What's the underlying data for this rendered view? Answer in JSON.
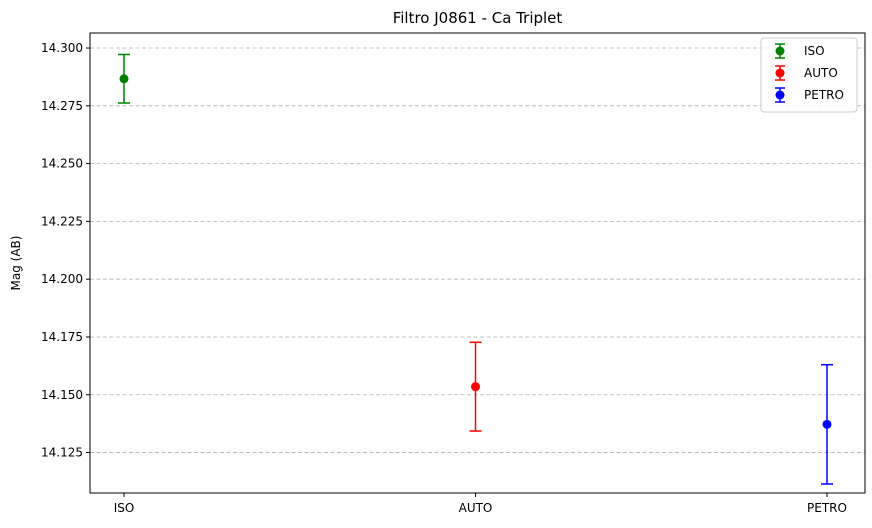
{
  "chart_data": {
    "type": "scatter",
    "title": "Filtro J0861 - Ca Triplet",
    "xlabel": "",
    "ylabel": "Mag (AB)",
    "categories": [
      "ISO",
      "AUTO",
      "PETRO"
    ],
    "ylim": [
      14.1075,
      14.3065
    ],
    "yticks": [
      "14.125",
      "14.150",
      "14.175",
      "14.200",
      "14.225",
      "14.250",
      "14.275",
      "14.300"
    ],
    "grid": "y-dashed",
    "legend_position": "top-right",
    "series": [
      {
        "name": "ISO",
        "category": "ISO",
        "value": 14.2867,
        "error": 0.0105,
        "color": "#008000"
      },
      {
        "name": "AUTO",
        "category": "AUTO",
        "value": 14.1535,
        "error": 0.0192,
        "color": "#ff0000"
      },
      {
        "name": "PETRO",
        "category": "PETRO",
        "value": 14.1372,
        "error": 0.0258,
        "color": "#0000ff"
      }
    ]
  }
}
